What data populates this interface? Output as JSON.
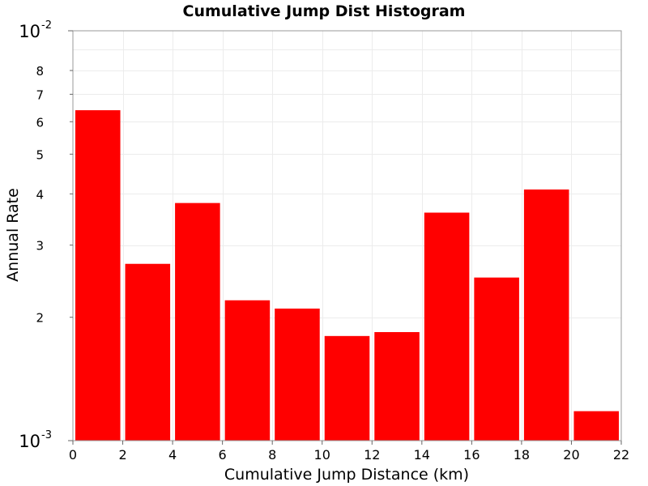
{
  "chart_data": {
    "type": "bar",
    "title": "Cumulative Jump Dist Histogram",
    "xlabel": "Cumulative Jump Distance (km)",
    "ylabel": "Annual Rate",
    "y_scale": "log",
    "xlim": [
      0,
      22
    ],
    "ylim": [
      0.001,
      0.01
    ],
    "grid": true,
    "bar_color": "#ff0000",
    "bin_width": 2,
    "x_ticks": [
      "0",
      "2",
      "4",
      "6",
      "8",
      "10",
      "12",
      "14",
      "16",
      "18",
      "20",
      "22"
    ],
    "y_decade_ticks": [
      {
        "value": 0.01,
        "base": "10",
        "exponent": "-2"
      },
      {
        "value": 0.001,
        "base": "10",
        "exponent": "-3"
      }
    ],
    "y_minor_ticks": [
      {
        "value": 0.008,
        "label": "8"
      },
      {
        "value": 0.007,
        "label": "7"
      },
      {
        "value": 0.006,
        "label": "6"
      },
      {
        "value": 0.005,
        "label": "5"
      },
      {
        "value": 0.004,
        "label": "4"
      },
      {
        "value": 0.003,
        "label": "3"
      },
      {
        "value": 0.002,
        "label": "2"
      }
    ],
    "bins": [
      {
        "x_start": 0,
        "x_end": 2,
        "value": 0.0064
      },
      {
        "x_start": 2,
        "x_end": 4,
        "value": 0.0027
      },
      {
        "x_start": 4,
        "x_end": 6,
        "value": 0.0038
      },
      {
        "x_start": 6,
        "x_end": 8,
        "value": 0.0022
      },
      {
        "x_start": 8,
        "x_end": 10,
        "value": 0.0021
      },
      {
        "x_start": 10,
        "x_end": 12,
        "value": 0.0018
      },
      {
        "x_start": 12,
        "x_end": 14,
        "value": 0.00184
      },
      {
        "x_start": 14,
        "x_end": 16,
        "value": 0.0036
      },
      {
        "x_start": 16,
        "x_end": 18,
        "value": 0.0025
      },
      {
        "x_start": 18,
        "x_end": 20,
        "value": 0.0041
      },
      {
        "x_start": 20,
        "x_end": 22,
        "value": 0.00118
      }
    ]
  }
}
